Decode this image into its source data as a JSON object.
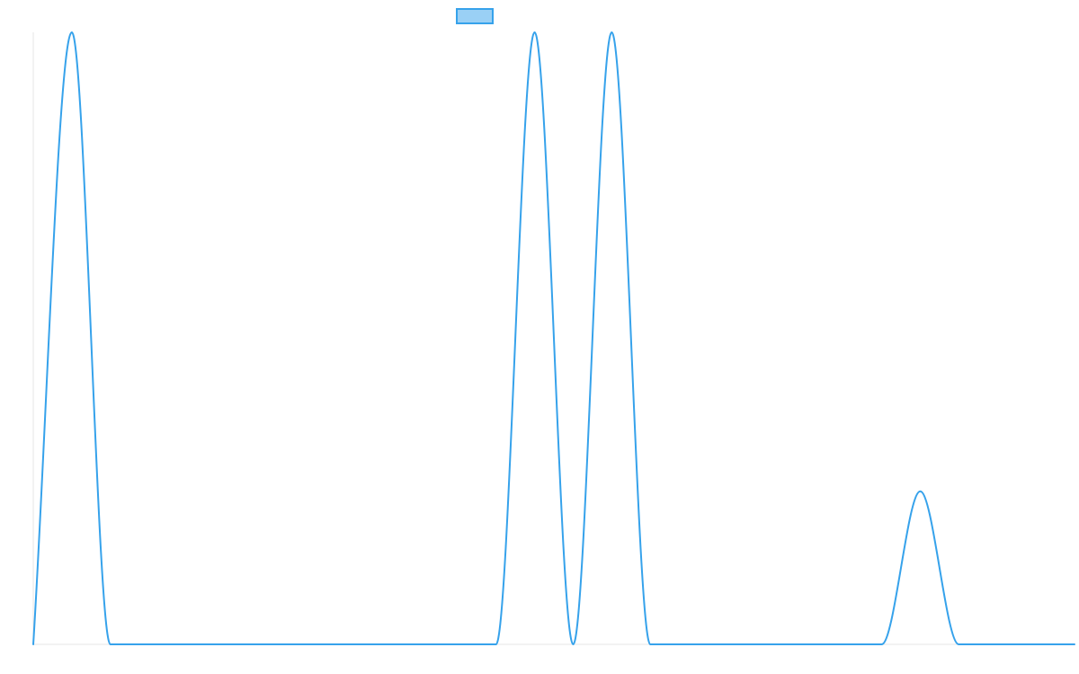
{
  "chart_data": {
    "type": "line",
    "title": "",
    "xlabel": "",
    "ylabel": "",
    "grid": false,
    "legend_position": "top-center",
    "x": [
      0,
      1,
      2,
      3,
      4,
      5,
      6,
      7,
      8,
      9,
      10,
      11,
      12,
      13,
      14,
      15,
      16,
      17,
      18,
      19,
      20,
      21,
      22,
      23,
      24,
      25,
      26,
      27
    ],
    "ylim": [
      0,
      30
    ],
    "series": [
      {
        "name": "",
        "color": "#36A2EB",
        "fill": "#9AD0F5",
        "values": [
          0,
          30,
          0,
          0,
          0,
          0,
          0,
          0,
          0,
          0,
          0,
          0,
          0,
          30,
          0,
          30,
          0,
          0,
          0,
          0,
          0,
          0,
          0,
          7.5,
          0,
          0,
          0,
          0
        ]
      }
    ]
  }
}
